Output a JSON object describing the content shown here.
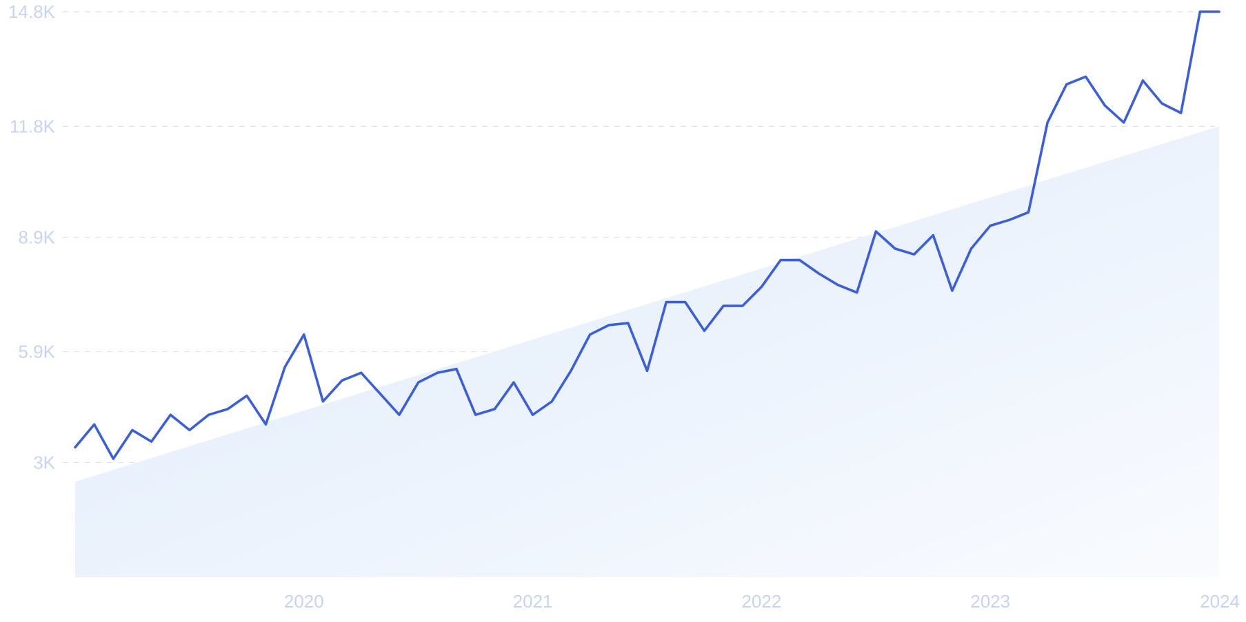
{
  "chart_data": {
    "type": "line",
    "title": "",
    "xlabel": "",
    "ylabel": "",
    "grid": true,
    "legend": "none",
    "ylim": [
      0,
      14800
    ],
    "xlim": [
      "2019-01",
      "2024-01"
    ],
    "y_ticks": [
      {
        "value": 3000,
        "label": "3K"
      },
      {
        "value": 5900,
        "label": "5.9K"
      },
      {
        "value": 8900,
        "label": "8.9K"
      },
      {
        "value": 11800,
        "label": "11.8K"
      },
      {
        "value": 14800,
        "label": "14.8K"
      }
    ],
    "x_ticks": [
      {
        "value": "2020-01",
        "label": "2020"
      },
      {
        "value": "2021-01",
        "label": "2021"
      },
      {
        "value": "2022-01",
        "label": "2022"
      },
      {
        "value": "2023-01",
        "label": "2023"
      },
      {
        "value": "2024-01",
        "label": "2024"
      }
    ],
    "series": [
      {
        "x": [
          "2019-01",
          "2019-02",
          "2019-03",
          "2019-04",
          "2019-05",
          "2019-06",
          "2019-07",
          "2019-08",
          "2019-09",
          "2019-10",
          "2019-11",
          "2019-12",
          "2020-01",
          "2020-02",
          "2020-03",
          "2020-04",
          "2020-05",
          "2020-06",
          "2020-07",
          "2020-08",
          "2020-09",
          "2020-10",
          "2020-11",
          "2020-12",
          "2021-01",
          "2021-02",
          "2021-03",
          "2021-04",
          "2021-05",
          "2021-06",
          "2021-07",
          "2021-08",
          "2021-09",
          "2021-10",
          "2021-11",
          "2021-12",
          "2022-01",
          "2022-02",
          "2022-03",
          "2022-04",
          "2022-05",
          "2022-06",
          "2022-07",
          "2022-08",
          "2022-09",
          "2022-10",
          "2022-11",
          "2022-12",
          "2023-01",
          "2023-02",
          "2023-03",
          "2023-04",
          "2023-05",
          "2023-06",
          "2023-07",
          "2023-08",
          "2023-09",
          "2023-10",
          "2023-11",
          "2023-12",
          "2024-01"
        ],
        "values": [
          3400,
          4000,
          3100,
          3850,
          3550,
          4250,
          3850,
          4250,
          4400,
          4750,
          4000,
          5500,
          6350,
          4600,
          5150,
          5350,
          4800,
          4250,
          5100,
          5350,
          5450,
          4250,
          4400,
          5100,
          4250,
          4600,
          5400,
          6350,
          6600,
          6650,
          5400,
          7200,
          7200,
          6450,
          7100,
          7100,
          7600,
          8300,
          8300,
          7950,
          7650,
          7450,
          9050,
          8600,
          8450,
          8950,
          7500,
          8600,
          9200,
          9350,
          9550,
          11900,
          12900,
          13100,
          12350,
          11900,
          13000,
          12400,
          12150,
          14800,
          14800
        ],
        "trend": [
          2500,
          11800
        ]
      }
    ],
    "colors": {
      "line": "#3a5fde",
      "area_start": "#deeafb",
      "area_end": "#f9fbfe",
      "grid": "#dbe2ec",
      "tick_label": "#c6d4f3"
    }
  }
}
